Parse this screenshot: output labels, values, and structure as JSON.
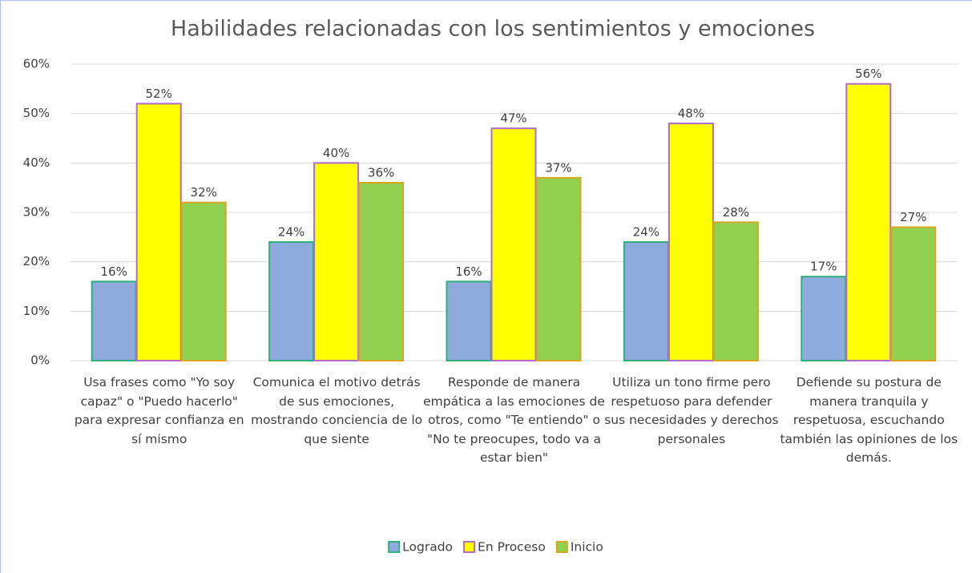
{
  "chart_data": {
    "type": "bar",
    "title": "Habilidades relacionadas con los sentimientos  y emociones",
    "categories": [
      "Usa frases como \"Yo soy capaz\" o \"Puedo hacerlo\" para expresar confianza en sí mismo",
      "Comunica el motivo detrás de sus emociones, mostrando conciencia de lo que siente",
      "Responde de manera empática a las emociones de otros, como \"Te entiendo\" o \"No te preocupes, todo va a estar bien\"",
      "Utiliza un tono firme pero respetuoso para defender sus necesidades y derechos personales",
      "Defiende su postura de manera tranquila y respetuosa, escuchando también las opiniones de los demás."
    ],
    "series": [
      {
        "name": "Logrado",
        "color": "#8faadc",
        "edgecolor": "#2eb07a",
        "values": [
          16,
          24,
          16,
          24,
          17
        ],
        "value_labels": [
          "16%",
          "24%",
          "16%",
          "24%",
          "17%"
        ]
      },
      {
        "name": "En Proceso",
        "color": "#ffff00",
        "edgecolor": "#b06ad0",
        "values": [
          52,
          40,
          47,
          48,
          56
        ],
        "value_labels": [
          "52%",
          "40%",
          "47%",
          "48%",
          "56%"
        ]
      },
      {
        "name": "Inicio",
        "color": "#92d050",
        "edgecolor": "#d9a520",
        "values": [
          32,
          36,
          37,
          28,
          27
        ],
        "value_labels": [
          "32%",
          "36%",
          "37%",
          "28%",
          "27%"
        ]
      }
    ],
    "ylim": [
      0,
      60
    ],
    "yticks": [
      {
        "value": 0,
        "label": "0%"
      },
      {
        "value": 10,
        "label": "10%"
      },
      {
        "value": 20,
        "label": "20%"
      },
      {
        "value": 30,
        "label": "30%"
      },
      {
        "value": 40,
        "label": "40%"
      },
      {
        "value": 50,
        "label": "50%"
      },
      {
        "value": 60,
        "label": "60%"
      }
    ],
    "grid": true,
    "legend": "bottom"
  }
}
